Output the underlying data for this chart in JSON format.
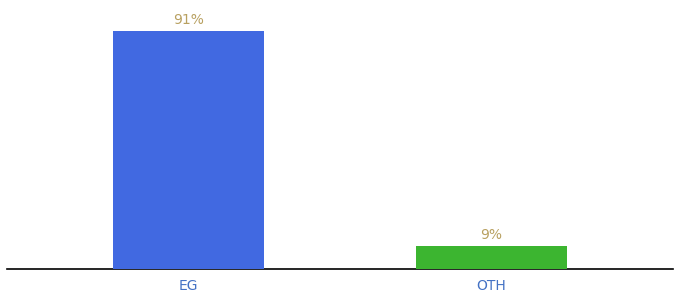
{
  "categories": [
    "EG",
    "OTH"
  ],
  "values": [
    91,
    9
  ],
  "bar_colors": [
    "#4169e1",
    "#3cb530"
  ],
  "label_color": "#b8a060",
  "label_fontsize": 10,
  "xlabel_fontsize": 10,
  "xlabel_color": "#4472c4",
  "background_color": "#ffffff",
  "ylim": [
    0,
    100
  ],
  "bar_width": 0.5,
  "figsize": [
    6.8,
    3.0
  ],
  "dpi": 100
}
